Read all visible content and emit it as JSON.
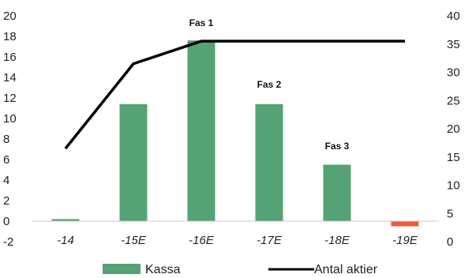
{
  "chart_data": {
    "type": "bar",
    "categories": [
      "-14",
      "-15E",
      "-16E",
      "-17E",
      "-18E",
      "-19E"
    ],
    "series": [
      {
        "name": "Kassa",
        "type": "bar",
        "axis": "left",
        "values": [
          0.2,
          11.4,
          17.6,
          11.4,
          5.5,
          -0.5
        ],
        "color": "#55a274",
        "negative_color": "#f05a3c"
      },
      {
        "name": "Antal aktier",
        "type": "line",
        "axis": "right",
        "values": [
          16.5,
          31.5,
          35.5,
          35.5,
          35.5,
          35.5
        ],
        "color": "#000000"
      }
    ],
    "y_left": {
      "min": -2,
      "max": 20,
      "ticks": [
        -2,
        0,
        2,
        4,
        6,
        8,
        10,
        12,
        14,
        16,
        18,
        20
      ]
    },
    "y_right": {
      "min": 0,
      "max": 40,
      "ticks": [
        0,
        5,
        10,
        15,
        20,
        25,
        30,
        35,
        40
      ]
    },
    "annotations": [
      {
        "text": "Fas 1",
        "category": "-16E",
        "y": 19.0
      },
      {
        "text": "Fas 2",
        "category": "-17E",
        "y": 13.0
      },
      {
        "text": "Fas 3",
        "category": "-18E",
        "y": 7.0
      }
    ],
    "grid": false,
    "legend": "bottom-center"
  }
}
